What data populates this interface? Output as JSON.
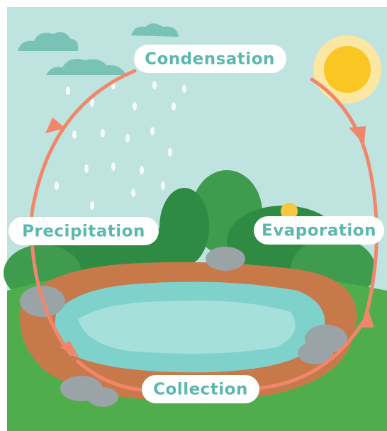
{
  "nodes": [
    {
      "label": "Condensation"
    },
    {
      "label": "Precipitation"
    },
    {
      "label": "Evaporation"
    },
    {
      "label": "Collection"
    }
  ]
}
